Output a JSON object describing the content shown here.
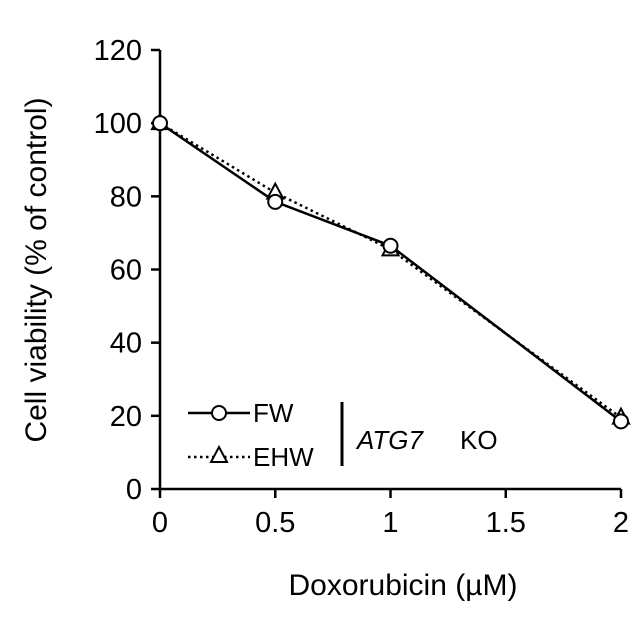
{
  "chart_data": {
    "type": "line",
    "title": "",
    "xlabel": "Doxorubicin (µM)",
    "ylabel": "Cell viability (% of control)",
    "x": [
      0,
      0.5,
      1,
      2
    ],
    "xlim": [
      0,
      2
    ],
    "ylim": [
      0,
      120
    ],
    "xticks": [
      "0",
      "0.5",
      "1",
      "1.5",
      "2"
    ],
    "xtick_values": [
      0,
      0.5,
      1,
      1.5,
      2
    ],
    "yticks": [
      "0",
      "20",
      "40",
      "60",
      "80",
      "100",
      "120"
    ],
    "ytick_values": [
      0,
      20,
      40,
      60,
      80,
      100,
      120
    ],
    "grid": false,
    "legend_position": "bottom-left",
    "series": [
      {
        "name": "FW",
        "values": [
          100,
          78.5,
          66.5,
          18.5
        ],
        "marker": "circle",
        "line": "solid",
        "color": "#000000"
      },
      {
        "name": "EHW",
        "values": [
          100,
          81,
          65.5,
          19.5
        ],
        "marker": "triangle",
        "line": "dotted",
        "color": "#000000"
      }
    ],
    "legend_group_label_italic": "ATG7",
    "legend_group_label_suffix": "KO"
  }
}
